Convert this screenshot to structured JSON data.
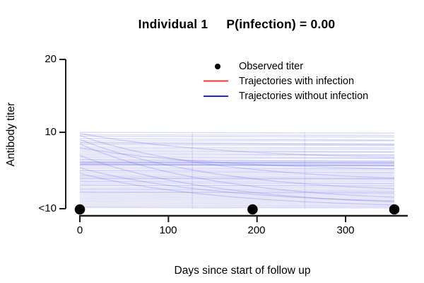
{
  "window": {
    "background": "#ffffff"
  },
  "title": {
    "individual": "Individual 1",
    "probability": "P(infection) = 0.00"
  },
  "legend": {
    "items": [
      {
        "label": "Observed titer",
        "marker": "black-dot",
        "color": "#000000"
      },
      {
        "label": "Trajectories with infection",
        "marker": "red-line",
        "color": "#f93535"
      },
      {
        "label": "Trajectories without infection",
        "marker": "blue-line",
        "color": "#2828e8"
      }
    ]
  },
  "chart_data": {
    "type": "line",
    "title": "Individual 1    P(infection) = 0.00",
    "xlabel": "Days since start of follow up",
    "ylabel": "Antibody titer",
    "x_ticks": [
      "0",
      "100",
      "200",
      "300"
    ],
    "x_tick_values": [
      0,
      100,
      200,
      300
    ],
    "y_ticks": [
      "20",
      "10",
      "<10"
    ],
    "xlim": [
      0,
      370
    ],
    "ylim_note": "y axis: '<10' detection floor, then 10 and 20; trajectories fill band between <10 and 10",
    "grid": false,
    "legend_position": "top-right-inside",
    "observed": {
      "name": "Observed titer",
      "days": [
        0,
        195,
        355
      ],
      "titer": "<10"
    },
    "vertical_marker_days": [
      127,
      254
    ],
    "follow_up_end_day": 355,
    "trajectories_with_infection": [],
    "trajectories_without_infection": {
      "flat": [
        [
          9.9,
          9.8
        ],
        [
          9.6,
          9.5
        ],
        [
          9.4,
          9.3
        ],
        [
          9.1,
          8.9
        ],
        [
          8.8,
          8.8
        ],
        [
          8.6,
          8.4
        ],
        [
          8.5,
          8.3
        ],
        [
          8.3,
          8.2
        ],
        [
          8.0,
          7.9
        ],
        [
          7.8,
          7.7
        ],
        [
          7.6,
          7.4
        ],
        [
          7.4,
          7.3
        ],
        [
          7.2,
          7.0
        ],
        [
          7.0,
          6.9
        ],
        [
          6.8,
          6.6
        ],
        [
          6.6,
          6.5
        ],
        [
          6.4,
          6.2
        ],
        [
          6.3,
          6.1
        ],
        [
          6.1,
          6.0
        ],
        [
          6.05,
          5.95
        ],
        [
          6.0,
          5.9
        ],
        [
          5.9,
          5.8
        ],
        [
          5.8,
          5.6
        ],
        [
          5.75,
          5.65
        ],
        [
          5.7,
          5.6
        ],
        [
          5.6,
          5.5
        ],
        [
          5.4,
          5.2
        ],
        [
          5.2,
          5.1
        ],
        [
          5.0,
          4.9
        ],
        [
          4.9,
          4.7
        ],
        [
          4.7,
          4.6
        ],
        [
          4.5,
          4.4
        ],
        [
          4.3,
          4.2
        ],
        [
          4.2,
          4.0
        ],
        [
          4.0,
          3.9
        ],
        [
          3.95,
          3.85
        ],
        [
          3.8,
          3.7
        ],
        [
          3.6,
          3.5
        ],
        [
          3.5,
          3.3
        ],
        [
          3.3,
          3.2
        ],
        [
          3.1,
          3.0
        ],
        [
          3.0,
          2.9
        ],
        [
          2.8,
          2.7
        ],
        [
          2.6,
          2.5
        ],
        [
          2.5,
          2.3
        ],
        [
          2.3,
          2.2
        ],
        [
          2.15,
          2.05
        ],
        [
          2.1,
          2.0
        ],
        [
          1.9,
          1.8
        ],
        [
          1.7,
          1.6
        ],
        [
          1.5,
          1.4
        ],
        [
          1.3,
          1.2
        ],
        [
          1.1,
          1.0
        ],
        [
          0.9,
          0.8
        ],
        [
          0.7,
          0.6
        ],
        [
          0.5,
          0.4
        ],
        [
          0.3,
          0.25
        ],
        [
          0.15,
          0.1
        ]
      ],
      "decay": [
        [
          9.5,
          4.0
        ],
        [
          9.0,
          2.6
        ],
        [
          8.4,
          1.5
        ],
        [
          7.9,
          5.2
        ],
        [
          6.9,
          0.9
        ],
        [
          9.8,
          6.7
        ],
        [
          5.3,
          1.0
        ],
        [
          4.6,
          0.5
        ]
      ]
    },
    "colors": {
      "trajectory_without_infection": "rgba(68,68,230,0.2)",
      "vertical_marker": "rgba(68,68,230,0.11)",
      "trajectory_with_infection": "#f93535",
      "observed_point": "#000000",
      "axis": "#1c1c1c",
      "legend_red": "#f93535",
      "legend_blue": "#2828e8"
    }
  }
}
